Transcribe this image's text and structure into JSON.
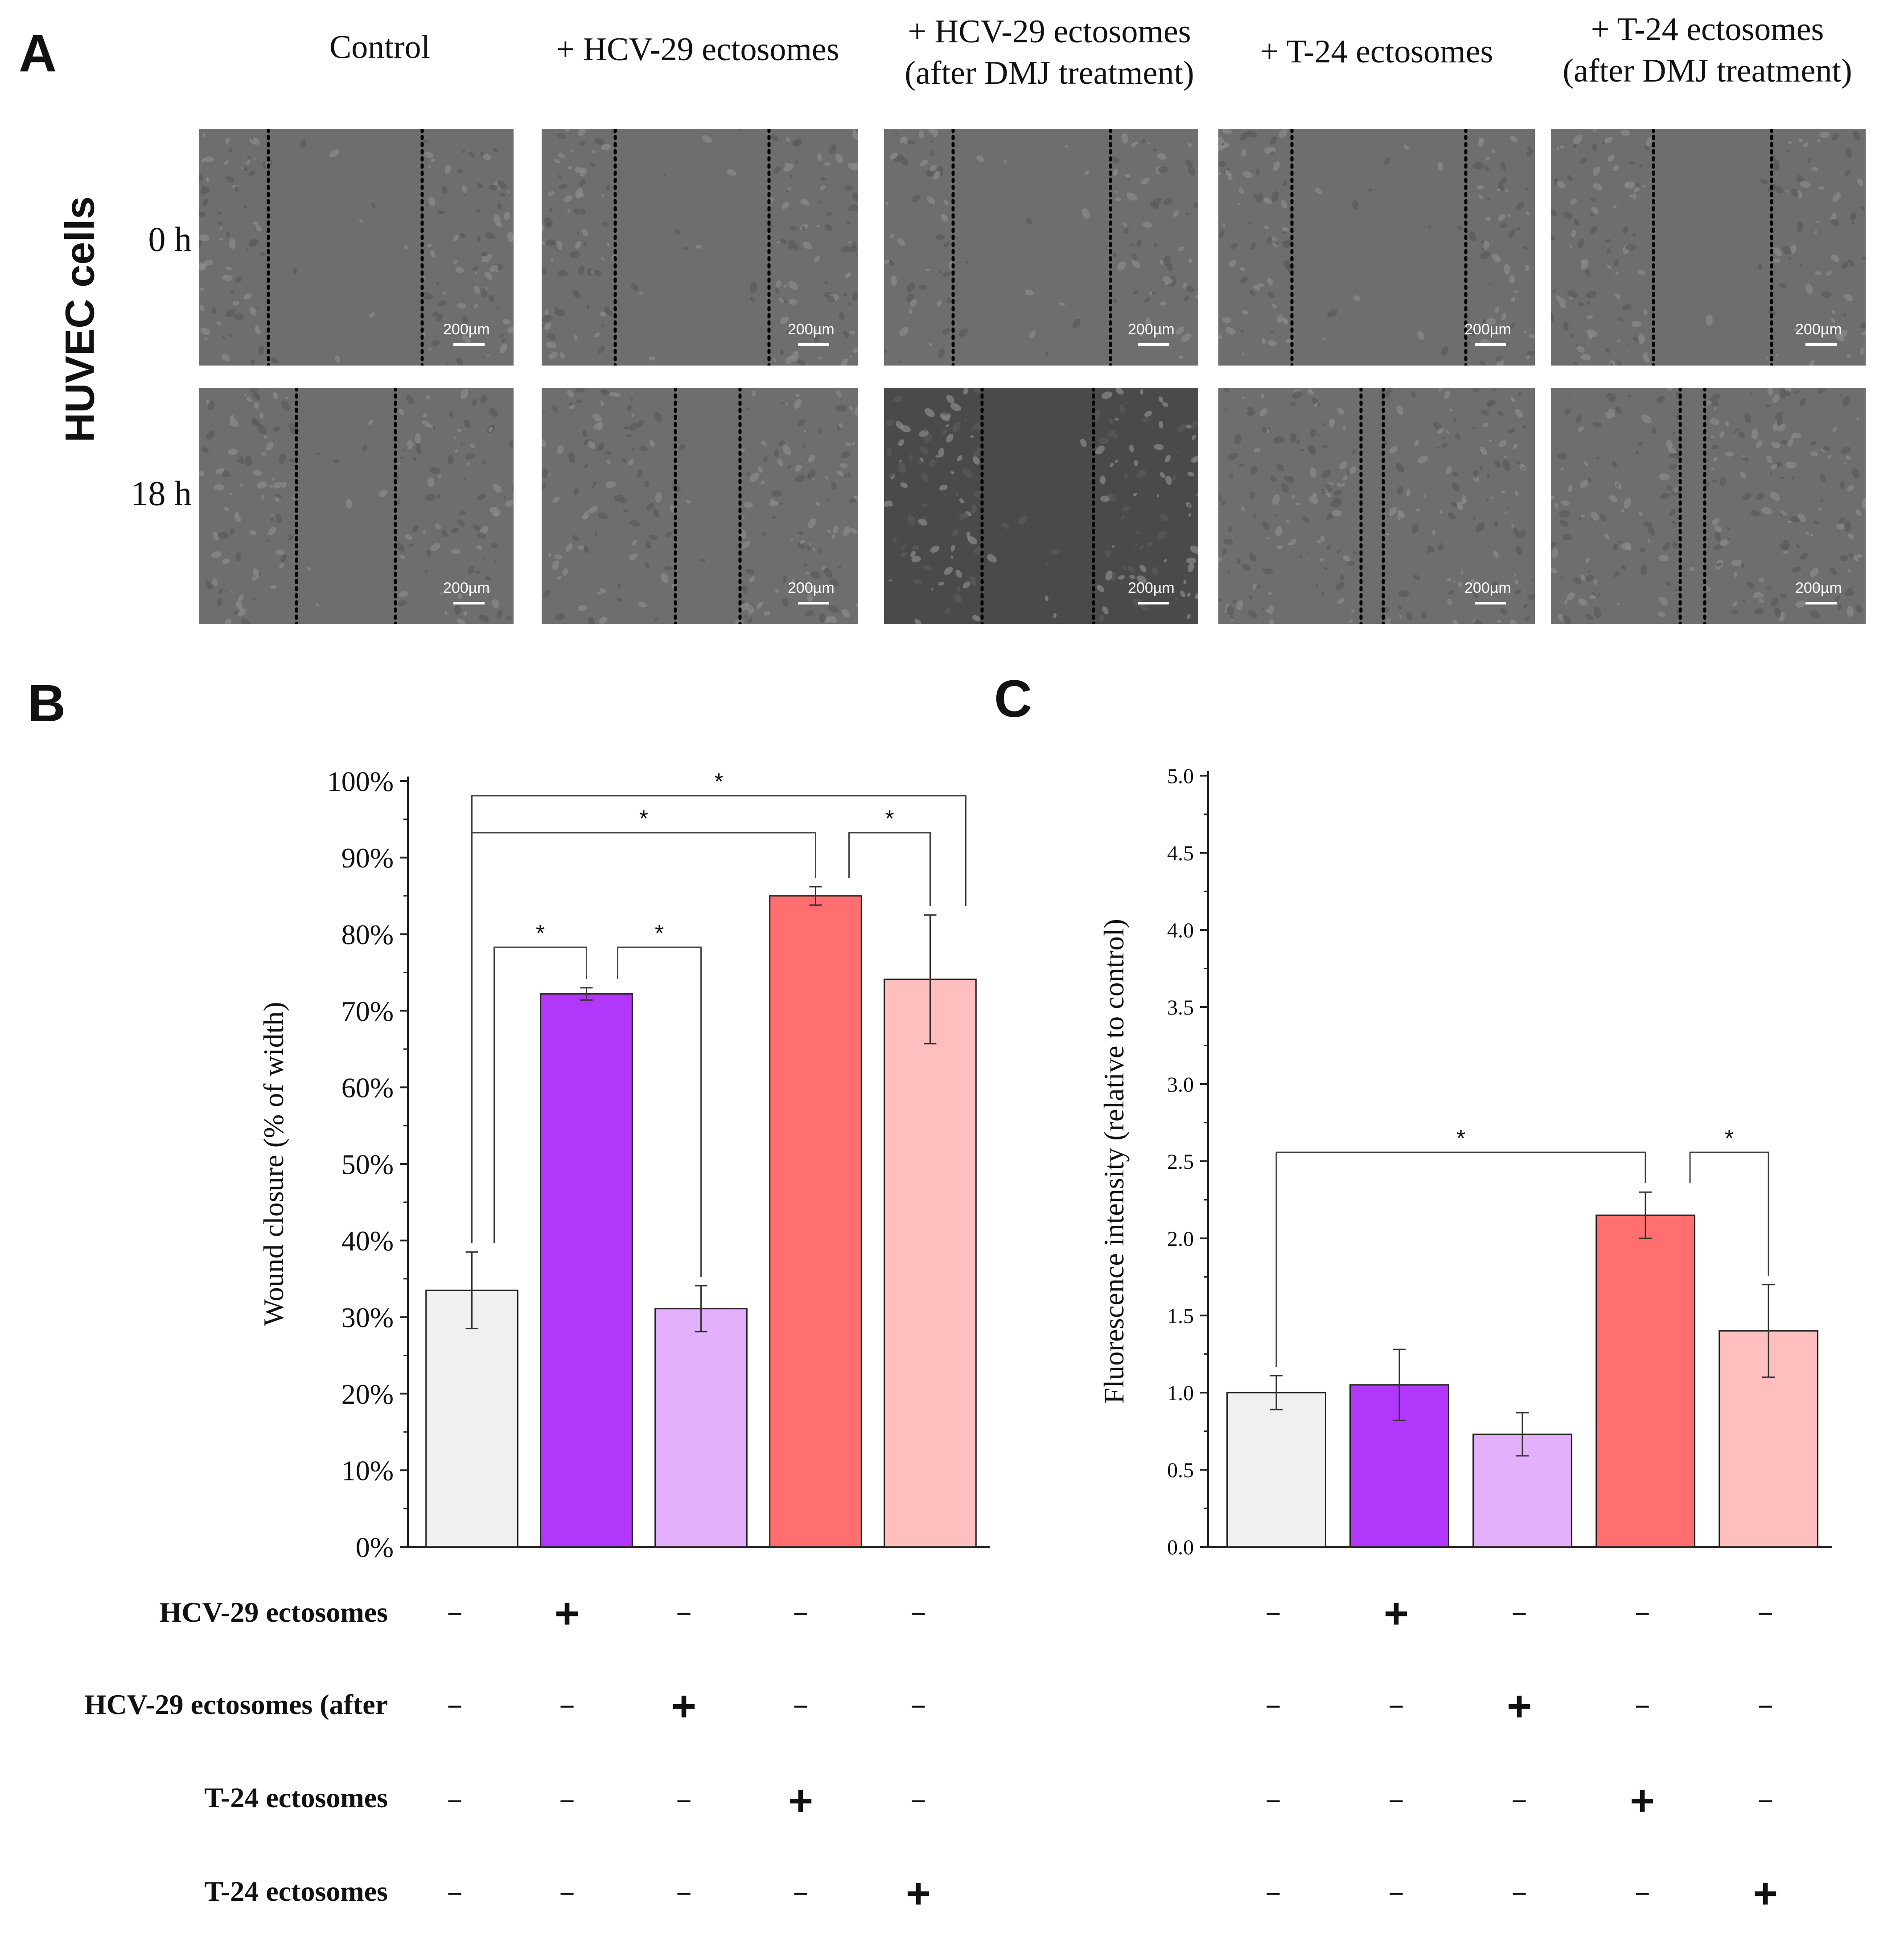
{
  "panels": {
    "a": "A",
    "b": "B",
    "c": "C"
  },
  "panel_a": {
    "columns": [
      [
        "Control"
      ],
      [
        "+ HCV-29 ectosomes"
      ],
      [
        "+ HCV-29 ectosomes",
        "(after DMJ treatment)"
      ],
      [
        "+ T-24 ectosomes"
      ],
      [
        "+ T-24 ectosomes",
        "(after DMJ treatment)"
      ]
    ],
    "rows": [
      "0 h",
      "18 h"
    ],
    "cells_label": "HUVEC cells",
    "scale_bar": "200µm"
  },
  "conditions": {
    "labels": [
      "HCV-29 ectosomes",
      "HCV-29 ectosomes (after",
      "T-24 ectosomes",
      "T-24 ectosomes"
    ],
    "matrix": [
      [
        "−",
        "+",
        "−",
        "−",
        "−"
      ],
      [
        "−",
        "−",
        "+",
        "−",
        "−"
      ],
      [
        "−",
        "−",
        "−",
        "+",
        "−"
      ],
      [
        "−",
        "−",
        "−",
        "−",
        "+"
      ]
    ]
  },
  "colors": {
    "bar_fills": [
      "#f0f0f0",
      "#b137fb",
      "#e3b0fb",
      "#ff6f6f",
      "#ffbfbf"
    ],
    "bar_stroke": "#222222",
    "micro_bg": "#6e6e6e",
    "micro_bg_dark": "#4a4a4a"
  },
  "chart_data": [
    {
      "id": "B",
      "type": "bar",
      "categories": [
        "Control",
        "+ HCV-29 ectosomes",
        "+ HCV-29 ectosomes (after DMJ treatment)",
        "+ T-24 ectosomes",
        "+ T-24 ectosomes (after DMJ treatment)"
      ],
      "values": [
        33.5,
        72.2,
        31.1,
        85.0,
        74.1
      ],
      "errors": [
        5.0,
        0.8,
        3.0,
        1.2,
        8.4
      ],
      "ylabel": "Wound closure (% of width)",
      "ylim": [
        0,
        100
      ],
      "yticks": [
        "0%",
        "10%",
        "20%",
        "30%",
        "40%",
        "50%",
        "60%",
        "70%",
        "80%",
        "90%",
        "100%"
      ],
      "significance": [
        {
          "from": 0,
          "to": 1,
          "label": "*"
        },
        {
          "from": 1,
          "to": 2,
          "label": "*"
        },
        {
          "from": 0,
          "to": 3,
          "label": "*"
        },
        {
          "from": 0,
          "to": 4,
          "label": "*"
        },
        {
          "from": 3,
          "to": 4,
          "label": "*"
        }
      ]
    },
    {
      "id": "C",
      "type": "bar",
      "categories": [
        "Control",
        "+ HCV-29 ectosomes",
        "+ HCV-29 ectosomes (after DMJ treatment)",
        "+ T-24 ectosomes",
        "+ T-24 ectosomes (after DMJ treatment)"
      ],
      "values": [
        1.0,
        1.05,
        0.73,
        2.15,
        1.4
      ],
      "errors": [
        0.11,
        0.23,
        0.14,
        0.15,
        0.3
      ],
      "ylabel": "Fluorescence intensity (relative to control)",
      "ylim": [
        0,
        5
      ],
      "yticks": [
        "0.0",
        "0.5",
        "1.0",
        "1.5",
        "2.0",
        "2.5",
        "3.0",
        "3.5",
        "4.0",
        "4.5",
        "5.0"
      ],
      "significance": [
        {
          "from": 0,
          "to": 3,
          "label": "*"
        },
        {
          "from": 3,
          "to": 4,
          "label": "*"
        }
      ]
    }
  ]
}
